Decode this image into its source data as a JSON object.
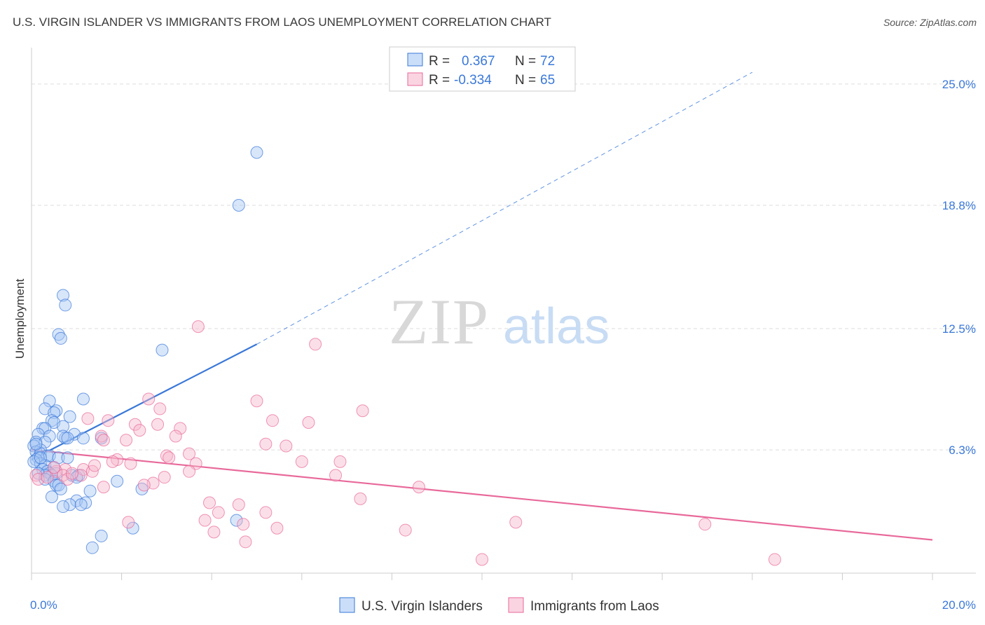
{
  "title": "U.S. VIRGIN ISLANDER VS IMMIGRANTS FROM LAOS UNEMPLOYMENT CORRELATION CHART",
  "source": "Source: ZipAtlas.com",
  "watermark": {
    "zip": "ZIP",
    "atlas": "atlas"
  },
  "colors": {
    "blue": "#3a78d8",
    "blue_fill": "#a8c8f5",
    "pink": "#e8699a",
    "pink_fill": "#f7b8cd",
    "value_text": "#3a78d8",
    "grid": "#dddddd"
  },
  "stats": [
    {
      "r_label": "R =",
      "r_value": "0.367",
      "n_label": "N =",
      "n_value": "72"
    },
    {
      "r_label": "R =",
      "r_value": "-0.334",
      "n_label": "N =",
      "n_value": "65"
    }
  ],
  "chart_data": {
    "type": "scatter",
    "ylabel": "Unemployment",
    "x_tick_labels": [
      "0.0%",
      "20.0%"
    ],
    "y_tick_labels": [
      "6.3%",
      "12.5%",
      "18.8%",
      "25.0%"
    ],
    "xlim": [
      0,
      20
    ],
    "ylim": [
      0,
      26.5
    ],
    "grid": true,
    "legend_placement": "bottom",
    "series": [
      {
        "name": "U.S. Virgin Islanders",
        "color": "blue",
        "trend": {
          "x": [
            0,
            5
          ],
          "y": [
            5.8,
            11.7
          ],
          "extend_dashed_to": [
            16,
            25.6
          ]
        },
        "points": [
          [
            5,
            21.5
          ],
          [
            4.6,
            18.8
          ],
          [
            0.7,
            14.2
          ],
          [
            0.75,
            13.7
          ],
          [
            0.6,
            12.2
          ],
          [
            0.65,
            12.0
          ],
          [
            2.9,
            11.4
          ],
          [
            1.15,
            8.9
          ],
          [
            0.4,
            8.8
          ],
          [
            0.3,
            8.4
          ],
          [
            0.55,
            8.3
          ],
          [
            0.5,
            8.2
          ],
          [
            0.85,
            8.0
          ],
          [
            0.45,
            7.8
          ],
          [
            0.5,
            7.7
          ],
          [
            0.7,
            7.5
          ],
          [
            0.25,
            7.4
          ],
          [
            0.3,
            7.4
          ],
          [
            0.15,
            7.1
          ],
          [
            0.4,
            7.0
          ],
          [
            0.95,
            7.1
          ],
          [
            0.75,
            6.9
          ],
          [
            1.55,
            6.9
          ],
          [
            0.7,
            7.0
          ],
          [
            0.8,
            6.9
          ],
          [
            1.15,
            6.9
          ],
          [
            0.1,
            6.7
          ],
          [
            0.3,
            6.7
          ],
          [
            0.05,
            6.5
          ],
          [
            0.2,
            6.3
          ],
          [
            0.1,
            6.2
          ],
          [
            0.2,
            6.1
          ],
          [
            0.35,
            6.0
          ],
          [
            0.4,
            6.0
          ],
          [
            0.15,
            5.9
          ],
          [
            0.6,
            5.9
          ],
          [
            0.8,
            5.9
          ],
          [
            0.1,
            5.8
          ],
          [
            0.2,
            5.6
          ],
          [
            0.05,
            5.7
          ],
          [
            0.3,
            5.5
          ],
          [
            0.5,
            5.4
          ],
          [
            0.25,
            5.3
          ],
          [
            0.35,
            5.2
          ],
          [
            0.4,
            5.1
          ],
          [
            0.55,
            5.1
          ],
          [
            0.45,
            5.0
          ],
          [
            0.3,
            5.0
          ],
          [
            0.9,
            5.0
          ],
          [
            1.05,
            5.0
          ],
          [
            0.15,
            5.1
          ],
          [
            1.0,
            4.9
          ],
          [
            0.3,
            4.8
          ],
          [
            0.5,
            4.7
          ],
          [
            1.9,
            4.7
          ],
          [
            0.55,
            4.5
          ],
          [
            0.6,
            4.5
          ],
          [
            2.45,
            4.3
          ],
          [
            0.65,
            4.3
          ],
          [
            1.3,
            4.2
          ],
          [
            0.45,
            3.9
          ],
          [
            1.0,
            3.7
          ],
          [
            1.2,
            3.6
          ],
          [
            0.85,
            3.5
          ],
          [
            1.1,
            3.5
          ],
          [
            0.7,
            3.4
          ],
          [
            4.55,
            2.7
          ],
          [
            2.25,
            2.3
          ],
          [
            1.55,
            1.9
          ],
          [
            1.35,
            1.3
          ],
          [
            0.1,
            6.6
          ],
          [
            0.2,
            5.9
          ]
        ]
      },
      {
        "name": "Immigrants from Laos",
        "color": "pink",
        "trend": {
          "x": [
            0,
            20
          ],
          "y": [
            6.3,
            1.7
          ]
        },
        "points": [
          [
            3.7,
            12.6
          ],
          [
            6.3,
            11.7
          ],
          [
            2.6,
            8.9
          ],
          [
            5.0,
            8.8
          ],
          [
            2.85,
            8.4
          ],
          [
            7.35,
            8.3
          ],
          [
            1.25,
            7.9
          ],
          [
            1.7,
            7.8
          ],
          [
            5.35,
            7.8
          ],
          [
            6.15,
            7.7
          ],
          [
            2.3,
            7.6
          ],
          [
            2.8,
            7.6
          ],
          [
            3.3,
            7.4
          ],
          [
            2.4,
            7.3
          ],
          [
            1.55,
            7.0
          ],
          [
            3.2,
            7.0
          ],
          [
            1.6,
            6.8
          ],
          [
            2.1,
            6.8
          ],
          [
            5.2,
            6.6
          ],
          [
            5.65,
            6.5
          ],
          [
            3.5,
            6.1
          ],
          [
            3.0,
            6.0
          ],
          [
            3.05,
            5.9
          ],
          [
            1.9,
            5.8
          ],
          [
            1.8,
            5.7
          ],
          [
            2.2,
            5.6
          ],
          [
            6.85,
            5.7
          ],
          [
            3.65,
            5.6
          ],
          [
            6.0,
            5.7
          ],
          [
            1.15,
            5.3
          ],
          [
            1.35,
            5.2
          ],
          [
            3.5,
            5.2
          ],
          [
            0.75,
            5.3
          ],
          [
            0.55,
            5.2
          ],
          [
            6.75,
            5.0
          ],
          [
            2.95,
            4.9
          ],
          [
            0.7,
            5.0
          ],
          [
            1.1,
            5.0
          ],
          [
            0.1,
            5.0
          ],
          [
            0.15,
            4.8
          ],
          [
            0.35,
            4.9
          ],
          [
            0.8,
            4.8
          ],
          [
            2.7,
            4.6
          ],
          [
            2.5,
            4.5
          ],
          [
            1.6,
            4.4
          ],
          [
            8.6,
            4.4
          ],
          [
            7.3,
            3.8
          ],
          [
            3.95,
            3.6
          ],
          [
            4.6,
            3.5
          ],
          [
            5.2,
            3.1
          ],
          [
            4.15,
            3.1
          ],
          [
            3.85,
            2.7
          ],
          [
            4.7,
            2.5
          ],
          [
            2.15,
            2.6
          ],
          [
            5.45,
            2.3
          ],
          [
            8.3,
            2.2
          ],
          [
            10.75,
            2.6
          ],
          [
            14.95,
            2.5
          ],
          [
            4.05,
            2.1
          ],
          [
            4.75,
            1.6
          ],
          [
            10.0,
            0.7
          ],
          [
            16.5,
            0.7
          ],
          [
            0.5,
            5.4
          ],
          [
            0.9,
            5.1
          ],
          [
            1.4,
            5.5
          ]
        ]
      }
    ]
  }
}
